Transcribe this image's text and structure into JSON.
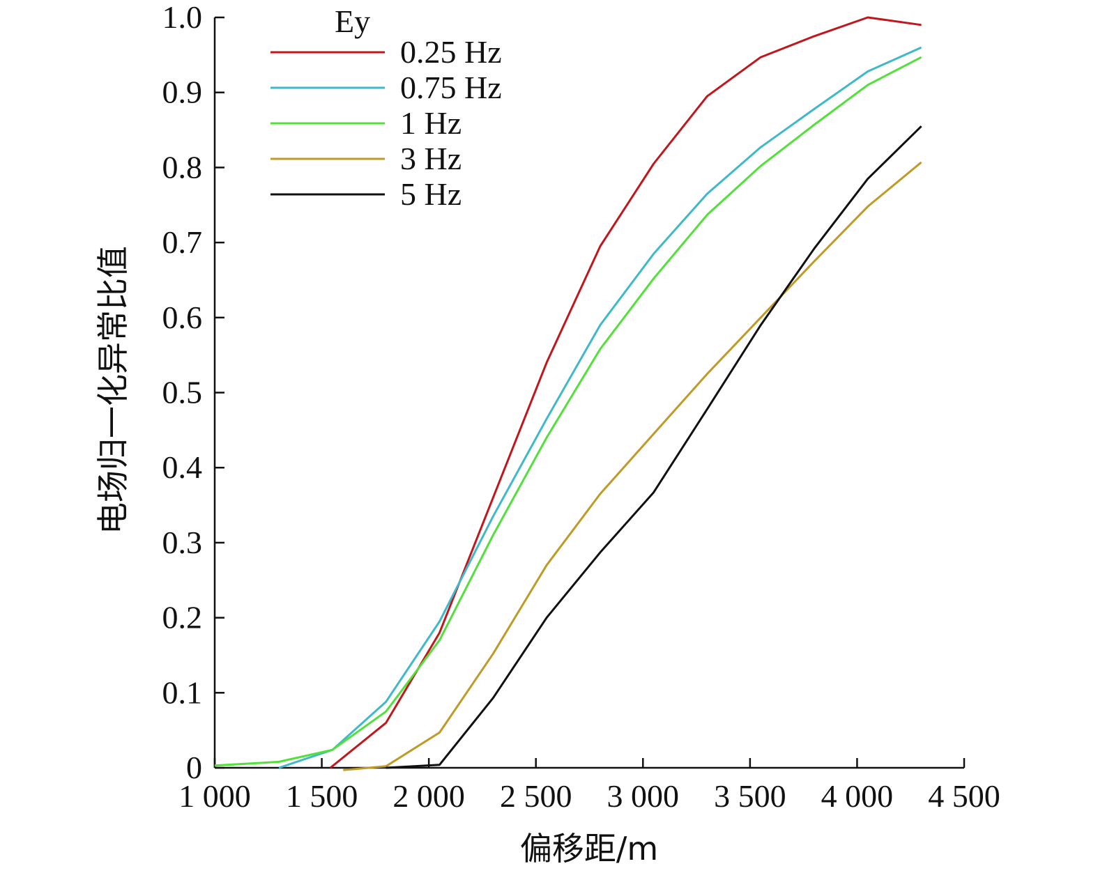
{
  "chart_data": {
    "type": "line",
    "title": "",
    "xlabel": "偏移距/m",
    "ylabel": "电场归一化异常比值",
    "xlim": [
      1000,
      4500
    ],
    "ylim": [
      0,
      1.0
    ],
    "xticks": [
      1000,
      1500,
      2000,
      2500,
      3000,
      3500,
      4000,
      4500
    ],
    "xtick_labels": [
      "1 000",
      "1 500",
      "2 000",
      "2 500",
      "3 000",
      "3 500",
      "4 000",
      "4 500"
    ],
    "yticks": [
      0,
      0.1,
      0.2,
      0.3,
      0.4,
      0.5,
      0.6,
      0.7,
      0.8,
      0.9,
      1.0
    ],
    "ytick_labels": [
      "0",
      "0.1",
      "0.2",
      "0.3",
      "0.4",
      "0.5",
      "0.6",
      "0.7",
      "0.8",
      "0.9",
      "1.0"
    ],
    "legend_title": "Ey",
    "legend_position": "top-left",
    "grid": false,
    "series": [
      {
        "name": "0.25 Hz",
        "color": "#c0161c",
        "x": [
          1540,
          1800,
          2050,
          2300,
          2550,
          2800,
          3050,
          3300,
          3550,
          3800,
          4050,
          4300
        ],
        "y": [
          0.0,
          0.06,
          0.18,
          0.36,
          0.54,
          0.695,
          0.805,
          0.895,
          0.947,
          0.975,
          1.0,
          0.99
        ]
      },
      {
        "name": "0.75 Hz",
        "color": "#3fb8c9",
        "x": [
          1300,
          1550,
          1800,
          2050,
          2300,
          2550,
          2800,
          3050,
          3300,
          3550,
          3800,
          4050,
          4300
        ],
        "y": [
          0.0,
          0.024,
          0.088,
          0.195,
          0.335,
          0.465,
          0.59,
          0.685,
          0.765,
          0.827,
          0.878,
          0.928,
          0.96
        ]
      },
      {
        "name": "1 Hz",
        "color": "#52e03a",
        "x": [
          1000,
          1300,
          1550,
          1800,
          2050,
          2300,
          2550,
          2800,
          3050,
          3300,
          3550,
          3800,
          4050,
          4300
        ],
        "y": [
          0.003,
          0.008,
          0.024,
          0.075,
          0.17,
          0.31,
          0.44,
          0.558,
          0.652,
          0.737,
          0.802,
          0.857,
          0.91,
          0.947
        ]
      },
      {
        "name": "3 Hz",
        "color": "#c09a26",
        "x": [
          1600,
          1800,
          2050,
          2300,
          2550,
          2800,
          3050,
          3300,
          3550,
          3800,
          4050,
          4300
        ],
        "y": [
          -0.003,
          0.002,
          0.047,
          0.152,
          0.27,
          0.365,
          0.445,
          0.525,
          0.6,
          0.675,
          0.748,
          0.807
        ]
      },
      {
        "name": "5 Hz",
        "color": "#111111",
        "x": [
          1800,
          2050,
          2300,
          2550,
          2800,
          3050,
          3300,
          3550,
          3800,
          4050,
          4300
        ],
        "y": [
          0.0,
          0.004,
          0.093,
          0.2,
          0.287,
          0.367,
          0.478,
          0.59,
          0.692,
          0.785,
          0.855
        ]
      }
    ]
  }
}
